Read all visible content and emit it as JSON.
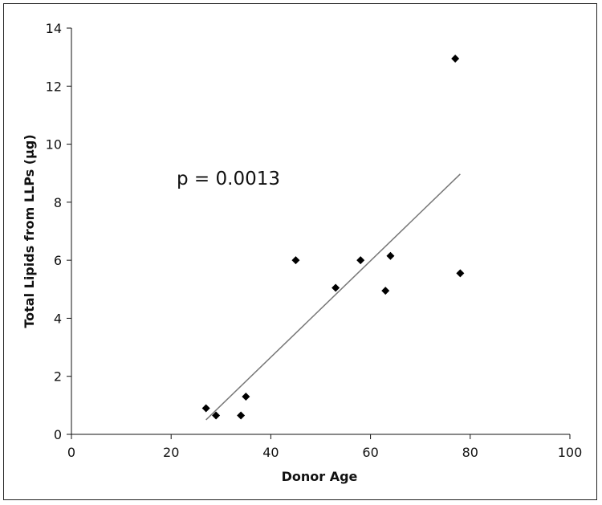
{
  "chart_data": {
    "type": "scatter",
    "title": "",
    "xlabel": "Donor Age",
    "ylabel": "Total Lipids from LLPs (μg)",
    "xlim": [
      0,
      100
    ],
    "ylim": [
      0,
      14
    ],
    "xticks": [
      0,
      20,
      40,
      60,
      80,
      100
    ],
    "yticks": [
      0,
      2,
      4,
      6,
      8,
      10,
      12,
      14
    ],
    "grid": false,
    "legend": "none",
    "annotation": "p = 0.0013",
    "series": [
      {
        "marker": "diamond",
        "color": "#000000",
        "points": [
          {
            "x": 27,
            "y": 0.9
          },
          {
            "x": 29,
            "y": 0.65
          },
          {
            "x": 34,
            "y": 0.65
          },
          {
            "x": 35,
            "y": 1.3
          },
          {
            "x": 45,
            "y": 6.0
          },
          {
            "x": 53,
            "y": 5.05
          },
          {
            "x": 58,
            "y": 6.0
          },
          {
            "x": 63,
            "y": 4.95
          },
          {
            "x": 64,
            "y": 6.15
          },
          {
            "x": 77,
            "y": 12.95
          },
          {
            "x": 78,
            "y": 5.55
          }
        ]
      }
    ],
    "trendline": {
      "color": "#777777",
      "start": {
        "x": 27,
        "y": 0.5
      },
      "end": {
        "x": 78,
        "y": 8.97
      }
    }
  }
}
